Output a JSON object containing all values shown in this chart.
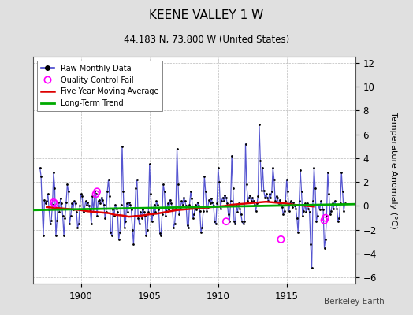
{
  "title": "KEENE VALLEY 1 W",
  "subtitle": "44.183 N, 73.800 W (United States)",
  "ylabel": "Temperature Anomaly (°C)",
  "watermark": "Berkeley Earth",
  "xlim": [
    1896.5,
    1920.0
  ],
  "ylim": [
    -6.5,
    12.5
  ],
  "yticks": [
    -6,
    -4,
    -2,
    0,
    2,
    4,
    6,
    8,
    10,
    12
  ],
  "xticks": [
    1900,
    1905,
    1910,
    1915
  ],
  "bg_color": "#e0e0e0",
  "plot_bg_color": "#ffffff",
  "grid_color": "#bbbbbb",
  "raw_color": "#4444cc",
  "raw_marker_color": "#000000",
  "ma_color": "#dd0000",
  "trend_color": "#00aa00",
  "qc_color": "#ff00ff",
  "legend_labels": [
    "Raw Monthly Data",
    "Quality Control Fail",
    "Five Year Moving Average",
    "Long-Term Trend"
  ],
  "monthly_data": [
    [
      1897.0,
      3.2
    ],
    [
      1897.083,
      2.5
    ],
    [
      1897.167,
      -0.3
    ],
    [
      1897.25,
      -2.5
    ],
    [
      1897.333,
      0.5
    ],
    [
      1897.417,
      0.2
    ],
    [
      1897.5,
      0.4
    ],
    [
      1897.583,
      1.0
    ],
    [
      1897.667,
      -0.3
    ],
    [
      1897.75,
      -1.5
    ],
    [
      1897.833,
      -1.2
    ],
    [
      1897.917,
      0.1
    ],
    [
      1898.0,
      2.8
    ],
    [
      1898.083,
      1.5
    ],
    [
      1898.167,
      -2.5
    ],
    [
      1898.25,
      -1.2
    ],
    [
      1898.333,
      0.3
    ],
    [
      1898.417,
      -0.5
    ],
    [
      1898.5,
      0.6
    ],
    [
      1898.583,
      0.2
    ],
    [
      1898.667,
      -0.8
    ],
    [
      1898.75,
      -2.5
    ],
    [
      1898.833,
      -1.0
    ],
    [
      1898.917,
      0.3
    ],
    [
      1899.0,
      1.8
    ],
    [
      1899.083,
      1.2
    ],
    [
      1899.167,
      -1.5
    ],
    [
      1899.25,
      -0.8
    ],
    [
      1899.333,
      0.2
    ],
    [
      1899.417,
      -0.3
    ],
    [
      1899.5,
      0.4
    ],
    [
      1899.583,
      0.2
    ],
    [
      1899.667,
      -0.5
    ],
    [
      1899.75,
      -1.8
    ],
    [
      1899.833,
      -1.5
    ],
    [
      1899.917,
      0.0
    ],
    [
      1900.0,
      1.0
    ],
    [
      1900.083,
      0.8
    ],
    [
      1900.167,
      -0.5
    ],
    [
      1900.25,
      -0.3
    ],
    [
      1900.333,
      0.4
    ],
    [
      1900.417,
      0.1
    ],
    [
      1900.5,
      0.3
    ],
    [
      1900.583,
      0.0
    ],
    [
      1900.667,
      -0.3
    ],
    [
      1900.75,
      -1.5
    ],
    [
      1900.833,
      0.8
    ],
    [
      1900.917,
      -0.5
    ],
    [
      1901.0,
      1.2
    ],
    [
      1901.083,
      1.0
    ],
    [
      1901.167,
      -0.8
    ],
    [
      1901.25,
      0.4
    ],
    [
      1901.333,
      0.5
    ],
    [
      1901.417,
      0.2
    ],
    [
      1901.5,
      0.7
    ],
    [
      1901.583,
      0.5
    ],
    [
      1901.667,
      0.1
    ],
    [
      1901.75,
      -1.0
    ],
    [
      1901.833,
      -0.5
    ],
    [
      1901.917,
      1.2
    ],
    [
      1902.0,
      2.2
    ],
    [
      1902.083,
      0.8
    ],
    [
      1902.167,
      -2.2
    ],
    [
      1902.25,
      -2.5
    ],
    [
      1902.333,
      -0.3
    ],
    [
      1902.417,
      -0.8
    ],
    [
      1902.5,
      0.1
    ],
    [
      1902.583,
      -0.2
    ],
    [
      1902.667,
      -0.5
    ],
    [
      1902.75,
      -2.8
    ],
    [
      1902.833,
      -2.2
    ],
    [
      1902.917,
      0.1
    ],
    [
      1903.0,
      5.0
    ],
    [
      1903.083,
      1.2
    ],
    [
      1903.167,
      -1.8
    ],
    [
      1903.25,
      -1.3
    ],
    [
      1903.333,
      0.2
    ],
    [
      1903.417,
      -0.5
    ],
    [
      1903.5,
      0.3
    ],
    [
      1903.583,
      0.1
    ],
    [
      1903.667,
      -0.3
    ],
    [
      1903.75,
      -2.0
    ],
    [
      1903.833,
      -3.2
    ],
    [
      1903.917,
      -0.8
    ],
    [
      1904.0,
      1.5
    ],
    [
      1904.083,
      2.2
    ],
    [
      1904.167,
      -1.0
    ],
    [
      1904.25,
      -1.5
    ],
    [
      1904.333,
      -0.5
    ],
    [
      1904.417,
      -1.0
    ],
    [
      1904.5,
      -0.3
    ],
    [
      1904.583,
      -0.5
    ],
    [
      1904.667,
      -0.8
    ],
    [
      1904.75,
      -2.5
    ],
    [
      1904.833,
      -2.0
    ],
    [
      1904.917,
      -0.5
    ],
    [
      1905.0,
      3.5
    ],
    [
      1905.083,
      1.0
    ],
    [
      1905.167,
      -1.3
    ],
    [
      1905.25,
      -0.7
    ],
    [
      1905.333,
      0.1
    ],
    [
      1905.417,
      -0.5
    ],
    [
      1905.5,
      0.4
    ],
    [
      1905.583,
      0.1
    ],
    [
      1905.667,
      -0.3
    ],
    [
      1905.75,
      -2.3
    ],
    [
      1905.833,
      -2.5
    ],
    [
      1905.917,
      -0.7
    ],
    [
      1906.0,
      1.8
    ],
    [
      1906.083,
      1.2
    ],
    [
      1906.167,
      -0.8
    ],
    [
      1906.25,
      -0.4
    ],
    [
      1906.333,
      0.2
    ],
    [
      1906.417,
      -0.3
    ],
    [
      1906.5,
      0.5
    ],
    [
      1906.583,
      0.2
    ],
    [
      1906.667,
      -0.2
    ],
    [
      1906.75,
      -1.8
    ],
    [
      1906.833,
      -1.5
    ],
    [
      1906.917,
      -0.2
    ],
    [
      1907.0,
      4.8
    ],
    [
      1907.083,
      1.8
    ],
    [
      1907.167,
      -0.7
    ],
    [
      1907.25,
      -0.2
    ],
    [
      1907.333,
      0.4
    ],
    [
      1907.417,
      0.1
    ],
    [
      1907.5,
      0.7
    ],
    [
      1907.583,
      0.4
    ],
    [
      1907.667,
      0.0
    ],
    [
      1907.75,
      -1.6
    ],
    [
      1907.833,
      -1.8
    ],
    [
      1907.917,
      0.1
    ],
    [
      1908.0,
      1.2
    ],
    [
      1908.083,
      0.6
    ],
    [
      1908.167,
      -1.0
    ],
    [
      1908.25,
      -0.7
    ],
    [
      1908.333,
      0.1
    ],
    [
      1908.417,
      -0.3
    ],
    [
      1908.5,
      0.3
    ],
    [
      1908.583,
      0.0
    ],
    [
      1908.667,
      -0.4
    ],
    [
      1908.75,
      -2.2
    ],
    [
      1908.833,
      -1.8
    ],
    [
      1908.917,
      -0.4
    ],
    [
      1909.0,
      2.5
    ],
    [
      1909.083,
      1.2
    ],
    [
      1909.167,
      -0.4
    ],
    [
      1909.25,
      -0.1
    ],
    [
      1909.333,
      0.5
    ],
    [
      1909.417,
      0.2
    ],
    [
      1909.5,
      0.6
    ],
    [
      1909.583,
      0.3
    ],
    [
      1909.667,
      0.0
    ],
    [
      1909.75,
      -1.3
    ],
    [
      1909.833,
      -1.5
    ],
    [
      1909.917,
      0.2
    ],
    [
      1910.0,
      3.2
    ],
    [
      1910.083,
      2.0
    ],
    [
      1910.167,
      -0.2
    ],
    [
      1910.25,
      0.4
    ],
    [
      1910.333,
      0.7
    ],
    [
      1910.417,
      0.4
    ],
    [
      1910.5,
      0.9
    ],
    [
      1910.583,
      0.7
    ],
    [
      1910.667,
      0.2
    ],
    [
      1910.75,
      -0.7
    ],
    [
      1910.833,
      -1.3
    ],
    [
      1910.917,
      0.4
    ],
    [
      1911.0,
      4.2
    ],
    [
      1911.083,
      1.5
    ],
    [
      1911.167,
      -1.3
    ],
    [
      1911.25,
      -1.5
    ],
    [
      1911.333,
      0.0
    ],
    [
      1911.417,
      -0.5
    ],
    [
      1911.5,
      0.2
    ],
    [
      1911.583,
      -0.2
    ],
    [
      1911.667,
      -0.7
    ],
    [
      1911.75,
      -1.3
    ],
    [
      1911.833,
      -1.5
    ],
    [
      1911.917,
      -1.3
    ],
    [
      1912.0,
      5.2
    ],
    [
      1912.083,
      1.8
    ],
    [
      1912.167,
      0.4
    ],
    [
      1912.25,
      0.7
    ],
    [
      1912.333,
      0.9
    ],
    [
      1912.417,
      0.4
    ],
    [
      1912.5,
      0.7
    ],
    [
      1912.583,
      0.4
    ],
    [
      1912.667,
      0.1
    ],
    [
      1912.75,
      -0.4
    ],
    [
      1912.833,
      0.2
    ],
    [
      1912.917,
      0.8
    ],
    [
      1913.0,
      6.8
    ],
    [
      1913.083,
      3.8
    ],
    [
      1913.167,
      1.3
    ],
    [
      1913.25,
      3.2
    ],
    [
      1913.333,
      1.3
    ],
    [
      1913.417,
      0.7
    ],
    [
      1913.5,
      1.0
    ],
    [
      1913.583,
      0.7
    ],
    [
      1913.667,
      0.4
    ],
    [
      1913.75,
      1.0
    ],
    [
      1913.833,
      0.7
    ],
    [
      1913.917,
      1.2
    ],
    [
      1914.0,
      3.2
    ],
    [
      1914.083,
      2.2
    ],
    [
      1914.167,
      0.4
    ],
    [
      1914.25,
      0.8
    ],
    [
      1914.333,
      0.7
    ],
    [
      1914.417,
      0.1
    ],
    [
      1914.5,
      0.5
    ],
    [
      1914.583,
      0.2
    ],
    [
      1914.667,
      -0.1
    ],
    [
      1914.75,
      -0.7
    ],
    [
      1914.833,
      -0.4
    ],
    [
      1914.917,
      0.4
    ],
    [
      1915.0,
      2.2
    ],
    [
      1915.083,
      1.2
    ],
    [
      1915.167,
      -0.4
    ],
    [
      1915.25,
      0.2
    ],
    [
      1915.333,
      0.4
    ],
    [
      1915.417,
      -0.1
    ],
    [
      1915.5,
      0.3
    ],
    [
      1915.583,
      0.0
    ],
    [
      1915.667,
      -0.2
    ],
    [
      1915.75,
      -1.0
    ],
    [
      1915.833,
      -2.2
    ],
    [
      1915.917,
      0.4
    ],
    [
      1916.0,
      3.0
    ],
    [
      1916.083,
      1.2
    ],
    [
      1916.167,
      -0.8
    ],
    [
      1916.25,
      -0.4
    ],
    [
      1916.333,
      0.2
    ],
    [
      1916.417,
      -0.5
    ],
    [
      1916.5,
      0.2
    ],
    [
      1916.583,
      -0.2
    ],
    [
      1916.667,
      -0.5
    ],
    [
      1916.75,
      -3.2
    ],
    [
      1916.833,
      -5.2
    ],
    [
      1916.917,
      0.4
    ],
    [
      1917.0,
      3.2
    ],
    [
      1917.083,
      1.5
    ],
    [
      1917.167,
      -1.3
    ],
    [
      1917.25,
      -0.8
    ],
    [
      1917.333,
      0.1
    ],
    [
      1917.417,
      -0.3
    ],
    [
      1917.5,
      0.4
    ],
    [
      1917.583,
      0.1
    ],
    [
      1917.667,
      -0.3
    ],
    [
      1917.75,
      -3.5
    ],
    [
      1917.833,
      -2.8
    ],
    [
      1917.917,
      -0.8
    ],
    [
      1918.0,
      2.8
    ],
    [
      1918.083,
      1.0
    ],
    [
      1918.167,
      -0.7
    ],
    [
      1918.25,
      -0.4
    ],
    [
      1918.333,
      0.2
    ],
    [
      1918.417,
      -0.2
    ],
    [
      1918.5,
      0.4
    ],
    [
      1918.583,
      0.1
    ],
    [
      1918.667,
      -0.2
    ],
    [
      1918.75,
      -1.3
    ],
    [
      1918.833,
      -1.0
    ],
    [
      1918.917,
      0.2
    ],
    [
      1919.0,
      2.8
    ],
    [
      1919.083,
      1.2
    ],
    [
      1919.167,
      -0.4
    ],
    [
      1919.25,
      0.2
    ]
  ],
  "qc_fails": [
    [
      1898.0,
      0.3
    ],
    [
      1898.083,
      0.2
    ],
    [
      1901.083,
      1.0
    ],
    [
      1901.167,
      1.2
    ],
    [
      1910.583,
      -1.3
    ],
    [
      1914.583,
      -2.8
    ],
    [
      1917.75,
      -1.2
    ],
    [
      1917.833,
      -1.0
    ]
  ],
  "ma_data": [
    [
      1897.5,
      -0.1
    ],
    [
      1898.0,
      -0.15
    ],
    [
      1898.5,
      -0.2
    ],
    [
      1899.0,
      -0.25
    ],
    [
      1899.5,
      -0.3
    ],
    [
      1900.0,
      -0.35
    ],
    [
      1900.5,
      -0.45
    ],
    [
      1901.0,
      -0.5
    ],
    [
      1901.5,
      -0.55
    ],
    [
      1902.0,
      -0.6
    ],
    [
      1902.5,
      -0.75
    ],
    [
      1903.0,
      -0.8
    ],
    [
      1903.5,
      -0.9
    ],
    [
      1904.0,
      -0.85
    ],
    [
      1904.5,
      -0.8
    ],
    [
      1905.0,
      -0.7
    ],
    [
      1905.5,
      -0.65
    ],
    [
      1906.0,
      -0.55
    ],
    [
      1906.5,
      -0.45
    ],
    [
      1907.0,
      -0.35
    ],
    [
      1907.5,
      -0.3
    ],
    [
      1908.0,
      -0.25
    ],
    [
      1908.5,
      -0.2
    ],
    [
      1909.0,
      -0.15
    ],
    [
      1909.5,
      -0.1
    ],
    [
      1910.0,
      -0.05
    ],
    [
      1910.5,
      0.0
    ],
    [
      1911.0,
      0.1
    ],
    [
      1911.5,
      0.15
    ],
    [
      1912.0,
      0.2
    ],
    [
      1912.5,
      0.25
    ],
    [
      1913.0,
      0.3
    ],
    [
      1913.5,
      0.35
    ],
    [
      1914.0,
      0.3
    ],
    [
      1914.5,
      0.25
    ],
    [
      1915.0,
      0.2
    ],
    [
      1915.5,
      0.1
    ],
    [
      1916.0,
      0.05
    ],
    [
      1916.5,
      0.0
    ],
    [
      1917.0,
      -0.05
    ]
  ],
  "trend_x": [
    1896.5,
    1920.0
  ],
  "trend_y": [
    -0.35,
    0.15
  ]
}
